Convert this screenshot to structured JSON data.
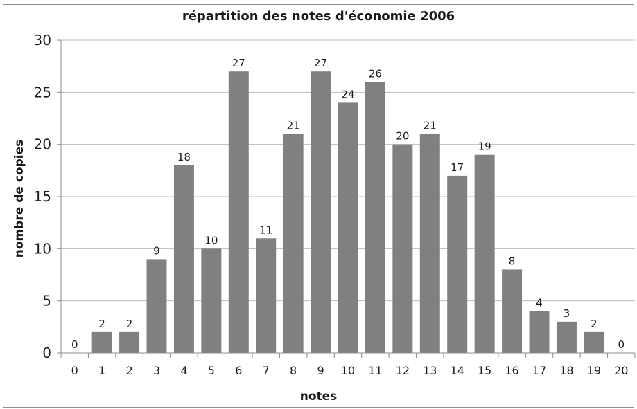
{
  "chart_data": {
    "type": "bar",
    "title": "répartition des notes d'économie 2006",
    "xlabel": "notes",
    "ylabel": "nombre de copies",
    "categories": [
      "0",
      "1",
      "2",
      "3",
      "4",
      "5",
      "6",
      "7",
      "8",
      "9",
      "10",
      "11",
      "12",
      "13",
      "14",
      "15",
      "16",
      "17",
      "18",
      "19",
      "20"
    ],
    "values": [
      0,
      2,
      2,
      9,
      18,
      10,
      27,
      11,
      21,
      27,
      24,
      26,
      20,
      21,
      17,
      19,
      8,
      4,
      3,
      2,
      0
    ],
    "ylim": [
      0,
      30
    ],
    "yticks": [
      "0",
      "5",
      "10",
      "15",
      "20",
      "25",
      "30"
    ],
    "grid": true,
    "data_labels": true,
    "bar_color": "#808083",
    "grid_color": "#bdbdbd"
  }
}
